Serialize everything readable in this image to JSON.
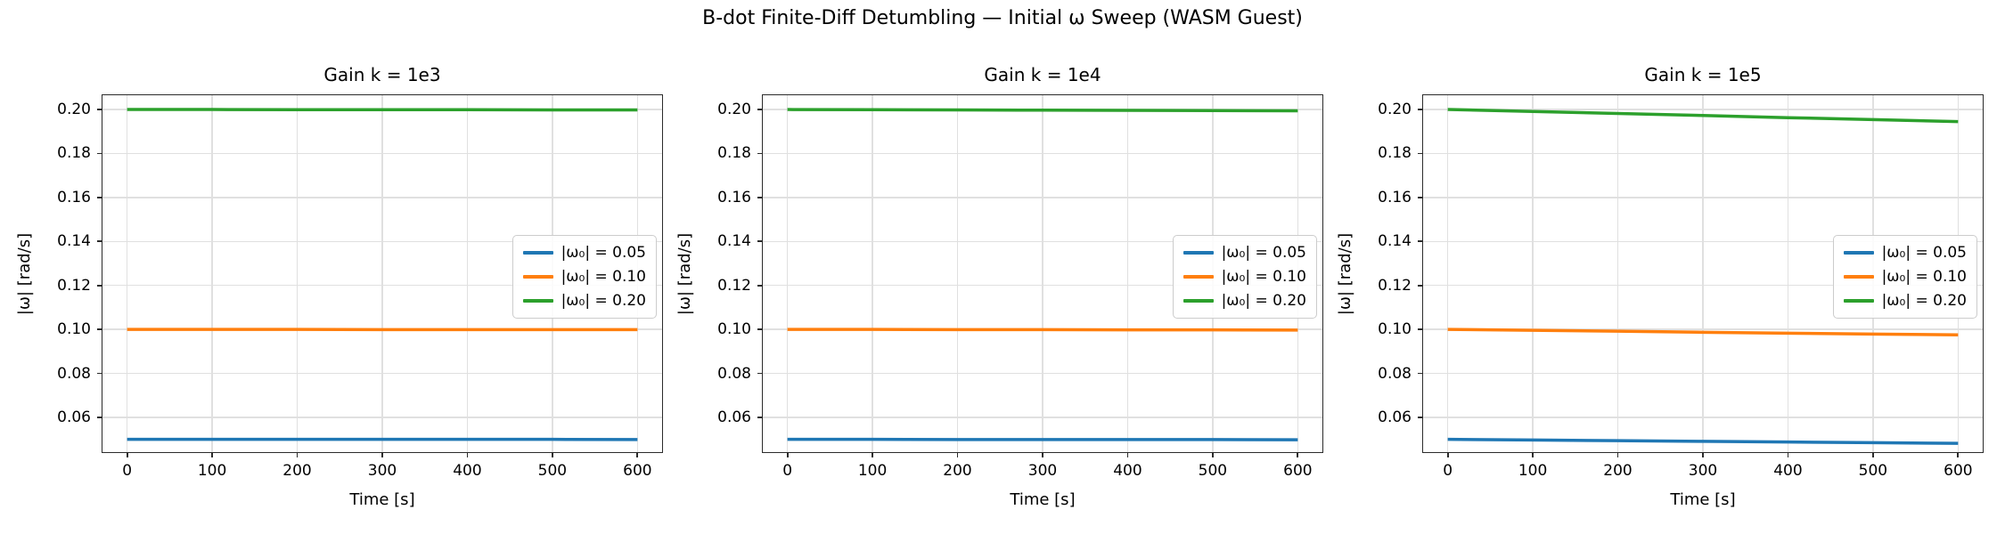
{
  "figure": {
    "suptitle": "B-dot Finite-Diff Detumbling — Initial ω Sweep (WASM Guest)",
    "background": "#ffffff",
    "grid_color": "#e0e0e0",
    "spine_color": "#2b2b2b"
  },
  "chart_data": [
    {
      "type": "line",
      "title": "Gain k = 1e3",
      "xlabel": "Time [s]",
      "ylabel": "|ω| [rad/s]",
      "x": [
        0,
        100,
        200,
        300,
        400,
        500,
        600
      ],
      "series": [
        {
          "name": "|ω₀| = 0.05",
          "color": "#1f77b4",
          "values": [
            0.05,
            0.05,
            0.05,
            0.05,
            0.05,
            0.05,
            0.0499
          ]
        },
        {
          "name": "|ω₀| = 0.10",
          "color": "#ff7f0e",
          "values": [
            0.1,
            0.1,
            0.1,
            0.0999,
            0.0999,
            0.0999,
            0.0999
          ]
        },
        {
          "name": "|ω₀| = 0.20",
          "color": "#2ca02c",
          "values": [
            0.2,
            0.2,
            0.1999,
            0.1999,
            0.1999,
            0.1998,
            0.1998
          ]
        }
      ],
      "xlim": [
        -30,
        630
      ],
      "ylim": [
        0.0438,
        0.2069
      ],
      "xticks": [
        0,
        100,
        200,
        300,
        400,
        500,
        600
      ],
      "xtick_labels": [
        "0",
        "100",
        "200",
        "300",
        "400",
        "500",
        "600"
      ],
      "yticks": [
        0.06,
        0.08,
        0.1,
        0.12,
        0.14,
        0.16,
        0.18,
        0.2
      ],
      "ytick_labels": [
        "0.06",
        "0.08",
        "0.10",
        "0.12",
        "0.14",
        "0.16",
        "0.18",
        "0.20"
      ],
      "grid": true,
      "legend_position": "center right"
    },
    {
      "type": "line",
      "title": "Gain k = 1e4",
      "xlabel": "Time [s]",
      "ylabel": "|ω| [rad/s]",
      "x": [
        0,
        100,
        200,
        300,
        400,
        500,
        600
      ],
      "series": [
        {
          "name": "|ω₀| = 0.05",
          "color": "#1f77b4",
          "values": [
            0.05,
            0.05,
            0.0499,
            0.0499,
            0.0499,
            0.0499,
            0.0498
          ]
        },
        {
          "name": "|ω₀| = 0.10",
          "color": "#ff7f0e",
          "values": [
            0.1,
            0.1,
            0.0999,
            0.0999,
            0.0998,
            0.0998,
            0.0997
          ]
        },
        {
          "name": "|ω₀| = 0.20",
          "color": "#2ca02c",
          "values": [
            0.2,
            0.1999,
            0.1998,
            0.1997,
            0.1996,
            0.1995,
            0.1994
          ]
        }
      ],
      "xlim": [
        -30,
        630
      ],
      "ylim": [
        0.0438,
        0.2069
      ],
      "xticks": [
        0,
        100,
        200,
        300,
        400,
        500,
        600
      ],
      "xtick_labels": [
        "0",
        "100",
        "200",
        "300",
        "400",
        "500",
        "600"
      ],
      "yticks": [
        0.06,
        0.08,
        0.1,
        0.12,
        0.14,
        0.16,
        0.18,
        0.2
      ],
      "ytick_labels": [
        "0.06",
        "0.08",
        "0.10",
        "0.12",
        "0.14",
        "0.16",
        "0.18",
        "0.20"
      ],
      "grid": true,
      "legend_position": "center right"
    },
    {
      "type": "line",
      "title": "Gain k = 1e5",
      "xlabel": "Time [s]",
      "ylabel": "|ω| [rad/s]",
      "x": [
        0,
        100,
        200,
        300,
        400,
        500,
        600
      ],
      "series": [
        {
          "name": "|ω₀| = 0.05",
          "color": "#1f77b4",
          "values": [
            0.05,
            0.0497,
            0.0494,
            0.0491,
            0.0488,
            0.0485,
            0.0482
          ]
        },
        {
          "name": "|ω₀| = 0.10",
          "color": "#ff7f0e",
          "values": [
            0.1,
            0.0996,
            0.0992,
            0.0987,
            0.0983,
            0.0979,
            0.0975
          ]
        },
        {
          "name": "|ω₀| = 0.20",
          "color": "#2ca02c",
          "values": [
            0.2,
            0.1991,
            0.1982,
            0.1973,
            0.1963,
            0.1954,
            0.1945
          ]
        }
      ],
      "xlim": [
        -30,
        630
      ],
      "ylim": [
        0.0438,
        0.2069
      ],
      "xticks": [
        0,
        100,
        200,
        300,
        400,
        500,
        600
      ],
      "xtick_labels": [
        "0",
        "100",
        "200",
        "300",
        "400",
        "500",
        "600"
      ],
      "yticks": [
        0.06,
        0.08,
        0.1,
        0.12,
        0.14,
        0.16,
        0.18,
        0.2
      ],
      "ytick_labels": [
        "0.06",
        "0.08",
        "0.10",
        "0.12",
        "0.14",
        "0.16",
        "0.18",
        "0.20"
      ],
      "grid": true,
      "legend_position": "center right"
    }
  ]
}
